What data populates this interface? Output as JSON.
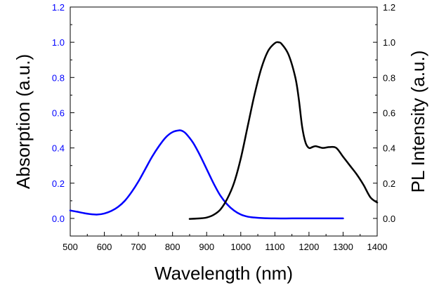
{
  "chart_data": {
    "type": "line",
    "xlabel": "Wavelength (nm)",
    "ylabel_left": "Absorption (a.u.)",
    "ylabel_right": "PL Intensity (a.u.)",
    "xlim": [
      500,
      1400
    ],
    "ylim": [
      -0.1,
      1.2
    ],
    "ylim_right": [
      -0.1,
      1.2
    ],
    "x_ticks": [
      500,
      600,
      700,
      800,
      900,
      1000,
      1100,
      1200,
      1300,
      1400
    ],
    "y_ticks": [
      0.0,
      0.2,
      0.4,
      0.6,
      0.8,
      1.0,
      1.2
    ],
    "grid": false,
    "colors": {
      "absorption": "#0000ff",
      "pl": "#000000",
      "left_axis": "#0000ff",
      "right_axis": "#000000"
    },
    "series": [
      {
        "axis": "left",
        "x": [
          500,
          520,
          540,
          560,
          580,
          600,
          620,
          640,
          660,
          680,
          700,
          720,
          740,
          760,
          780,
          800,
          820,
          830,
          840,
          860,
          880,
          900,
          920,
          940,
          960,
          980,
          1000,
          1020,
          1040,
          1060,
          1100,
          1150,
          1200,
          1250,
          1300
        ],
        "y": [
          0.045,
          0.038,
          0.03,
          0.024,
          0.022,
          0.028,
          0.042,
          0.065,
          0.1,
          0.15,
          0.21,
          0.28,
          0.35,
          0.41,
          0.46,
          0.49,
          0.5,
          0.495,
          0.48,
          0.43,
          0.36,
          0.28,
          0.2,
          0.13,
          0.08,
          0.045,
          0.022,
          0.01,
          0.005,
          0.002,
          0.0,
          0.0,
          0.0,
          0.0,
          0.0
        ]
      },
      {
        "axis": "right",
        "x": [
          850,
          880,
          900,
          920,
          940,
          960,
          980,
          1000,
          1020,
          1040,
          1060,
          1080,
          1100,
          1110,
          1120,
          1140,
          1160,
          1170,
          1180,
          1190,
          1200,
          1210,
          1220,
          1240,
          1260,
          1280,
          1300,
          1320,
          1340,
          1360,
          1380,
          1400
        ],
        "y": [
          -0.003,
          0.0,
          0.005,
          0.02,
          0.05,
          0.11,
          0.2,
          0.34,
          0.52,
          0.7,
          0.85,
          0.95,
          0.995,
          1.0,
          0.99,
          0.93,
          0.8,
          0.68,
          0.52,
          0.43,
          0.4,
          0.405,
          0.41,
          0.4,
          0.405,
          0.4,
          0.35,
          0.3,
          0.25,
          0.19,
          0.12,
          0.09
        ]
      }
    ]
  }
}
